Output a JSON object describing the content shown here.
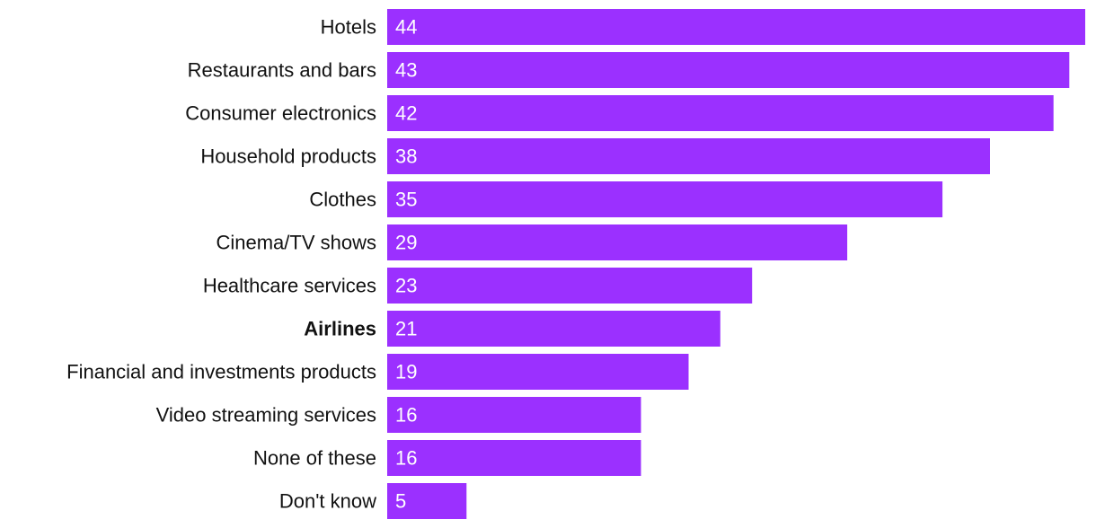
{
  "chart_data": {
    "type": "bar",
    "orientation": "horizontal",
    "categories": [
      "Hotels",
      "Restaurants and bars",
      "Consumer electronics",
      "Household products",
      "Clothes",
      "Cinema/TV shows",
      "Healthcare services",
      "Airlines",
      "Financial and investments products",
      "Video streaming services",
      "None of these",
      "Don't know"
    ],
    "values": [
      44,
      43,
      42,
      38,
      35,
      29,
      23,
      21,
      19,
      16,
      16,
      5
    ],
    "highlighted_category": "Airlines",
    "title": "",
    "xlabel": "",
    "ylabel": "",
    "xlim": [
      0,
      44
    ],
    "grid": false,
    "legend": "none",
    "bar_color": "#9b30ff",
    "label_color": "#111111",
    "value_label_color": "#ffffff"
  }
}
